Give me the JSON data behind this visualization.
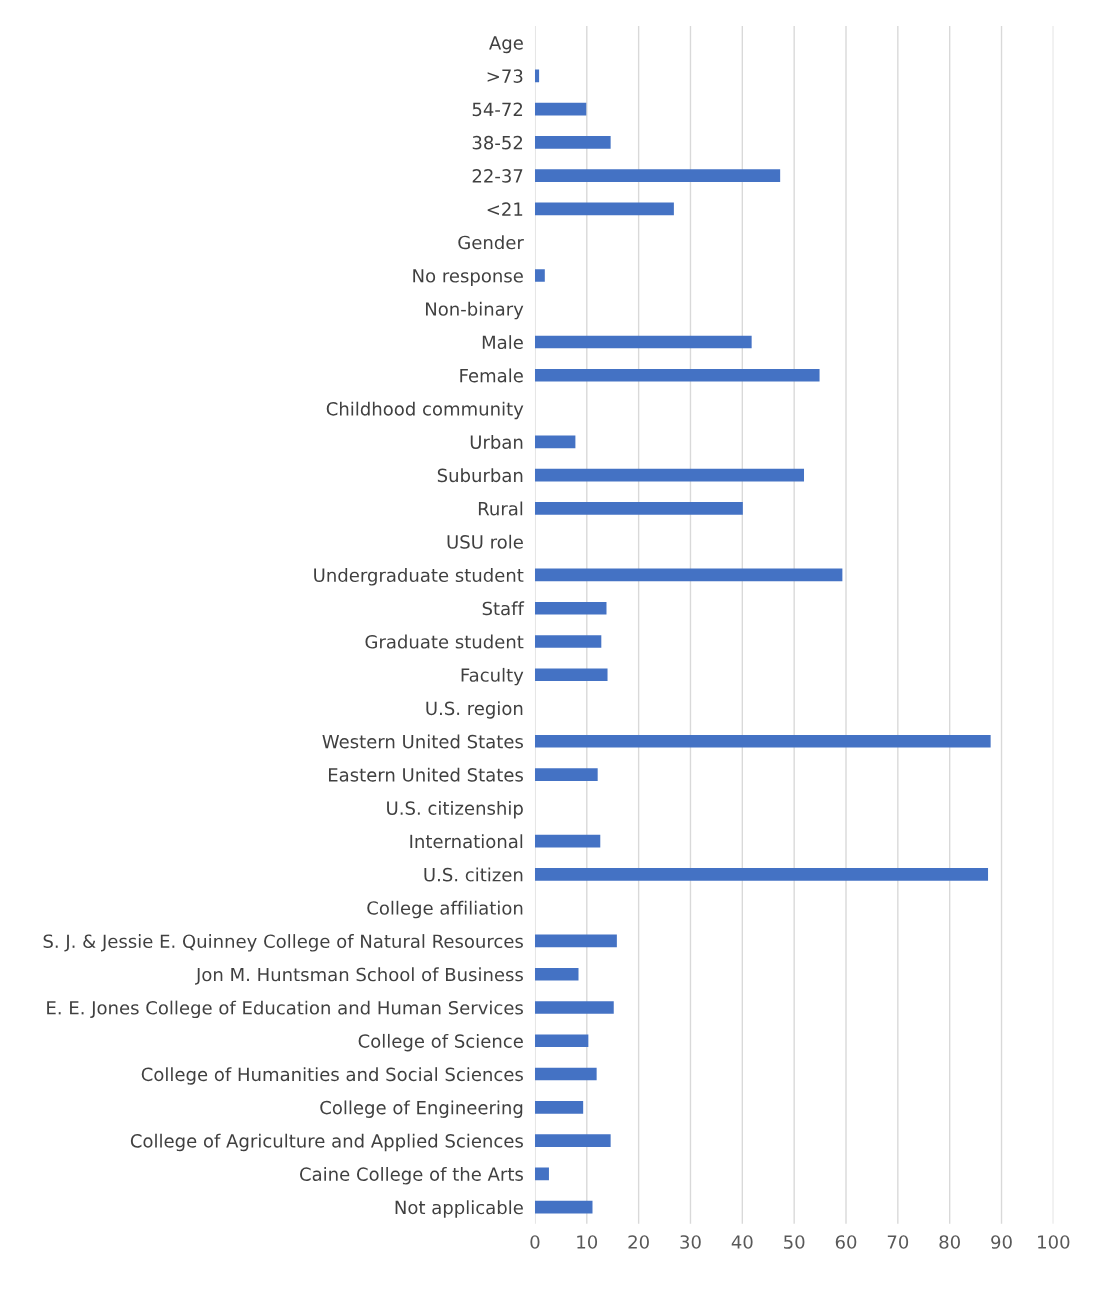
{
  "chart_data": {
    "type": "bar",
    "orientation": "horizontal",
    "categories": [
      "Age",
      ">73",
      "54-72",
      "38-52",
      "22-37",
      "<21",
      "Gender",
      "No response",
      "Non-binary",
      "Male",
      "Female",
      "Childhood community",
      "Urban",
      "Suburban",
      "Rural",
      "USU role",
      "Undergraduate student",
      "Staff",
      "Graduate student",
      "Faculty",
      "U.S. region",
      "Western United States",
      "Eastern United States",
      "U.S. citizenship",
      "International",
      "U.S. citizen",
      "College affiliation",
      "S. J. & Jessie E. Quinney College of Natural Resources",
      "Jon M. Huntsman School of Business",
      "E. E. Jones College of Education and Human Services",
      "College of Science",
      "College of Humanities and Social Sciences",
      "College of Engineering",
      "College of Agriculture and Applied Sciences",
      "Caine College of the Arts",
      "Not applicable"
    ],
    "values": [
      null,
      0.8,
      9.9,
      14.6,
      47.3,
      26.8,
      null,
      1.9,
      null,
      41.8,
      54.9,
      null,
      7.8,
      51.9,
      40.1,
      null,
      59.3,
      13.8,
      12.8,
      14.0,
      null,
      87.9,
      12.1,
      null,
      12.6,
      87.4,
      null,
      15.8,
      8.4,
      15.2,
      10.3,
      11.9,
      9.3,
      14.6,
      2.7,
      11.1
    ],
    "color": "#4472c4",
    "xlim": [
      0,
      100
    ],
    "xticks": [
      0,
      10,
      20,
      30,
      40,
      50,
      60,
      70,
      80,
      90,
      100
    ],
    "grid": "x",
    "legend": false
  }
}
